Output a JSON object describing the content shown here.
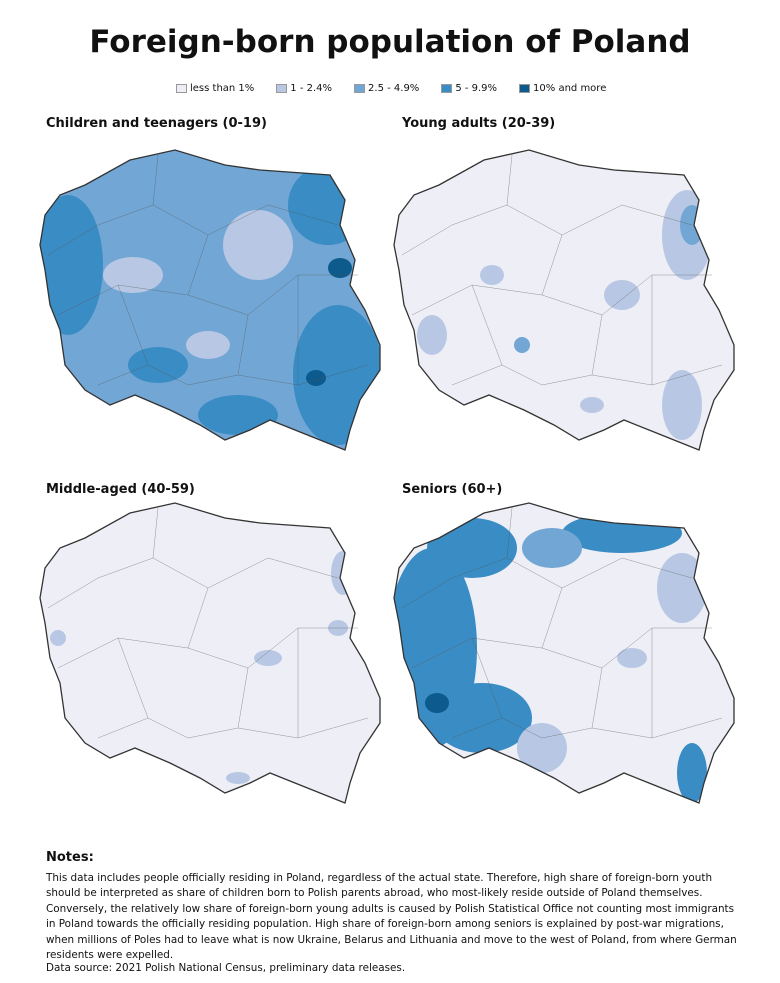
{
  "title": "Foreign-born population of Poland",
  "legend": {
    "items": [
      {
        "label": "less than 1%",
        "color": "#eeeef6"
      },
      {
        "label": "1 - 2.4%",
        "color": "#b8c8e4"
      },
      {
        "label": "2.5 - 4.9%",
        "color": "#72a6d4"
      },
      {
        "label": "5 - 9.9%",
        "color": "#3a8cc4"
      },
      {
        "label": "10% and more",
        "color": "#0d5a8c"
      }
    ]
  },
  "panels": [
    {
      "title": "Children and teenagers (0-19)"
    },
    {
      "title": "Young adults (20-39)"
    },
    {
      "title": "Middle-aged (40-59)"
    },
    {
      "title": "Seniors (60+)"
    }
  ],
  "notes": {
    "heading": "Notes:",
    "text": "This data includes people officially residing in Poland, regardless of the actual state. Therefore, high share of foreign-born youth should be interpreted as share of children born to Polish parents abroad, who most-likely reside outside of Poland themselves. Conversely, the relatively low share of foreign-born young adults is caused by Polish Statistical Office not counting most immigrants in Poland towards the officially residing population. High share of foreign-born among seniors is explained by post-war migrations, when millions of Poles had to leave what is now Ukraine, Belarus and Lithuania and move to the west of Poland, from where German residents were expelled."
  },
  "source": "Data source: 2021 Polish National Census, preliminary data releases."
}
